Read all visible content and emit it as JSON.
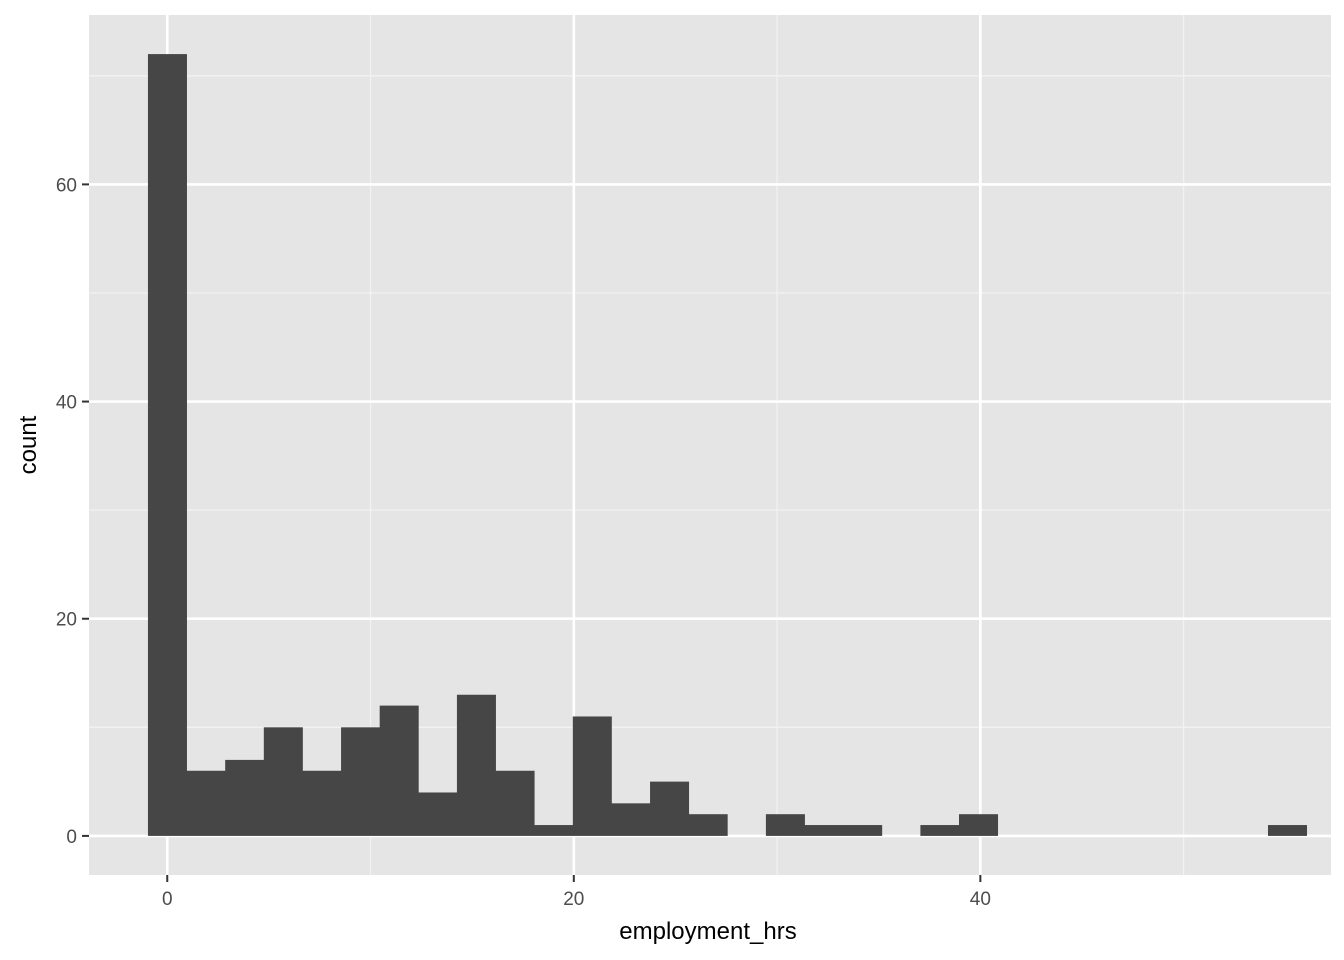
{
  "chart_data": {
    "type": "bar",
    "title": "",
    "xlabel": "employment_hrs",
    "ylabel": "count",
    "xlim": [
      -3.85,
      57.25
    ],
    "ylim": [
      -3.6,
      75.6
    ],
    "x_major_ticks": [
      0,
      20,
      40
    ],
    "x_minor_ticks": [
      10,
      30,
      50
    ],
    "y_major_ticks": [
      0,
      20,
      40,
      60
    ],
    "y_minor_ticks": [
      10,
      30,
      50,
      70
    ],
    "bin_width": 1.9,
    "bins": [
      {
        "x": 0.0,
        "count": 72
      },
      {
        "x": 1.9,
        "count": 6
      },
      {
        "x": 3.8,
        "count": 7
      },
      {
        "x": 5.7,
        "count": 10
      },
      {
        "x": 7.6,
        "count": 6
      },
      {
        "x": 9.5,
        "count": 10
      },
      {
        "x": 11.4,
        "count": 12
      },
      {
        "x": 13.3,
        "count": 4
      },
      {
        "x": 15.2,
        "count": 13
      },
      {
        "x": 17.1,
        "count": 6
      },
      {
        "x": 19.0,
        "count": 1
      },
      {
        "x": 20.9,
        "count": 11
      },
      {
        "x": 22.8,
        "count": 3
      },
      {
        "x": 24.7,
        "count": 5
      },
      {
        "x": 26.6,
        "count": 2
      },
      {
        "x": 28.5,
        "count": 0
      },
      {
        "x": 30.4,
        "count": 2
      },
      {
        "x": 32.3,
        "count": 1
      },
      {
        "x": 34.2,
        "count": 1
      },
      {
        "x": 36.1,
        "count": 0
      },
      {
        "x": 38.0,
        "count": 1
      },
      {
        "x": 39.9,
        "count": 2
      },
      {
        "x": 41.8,
        "count": 0
      },
      {
        "x": 43.7,
        "count": 0
      },
      {
        "x": 45.6,
        "count": 0
      },
      {
        "x": 47.5,
        "count": 0
      },
      {
        "x": 49.4,
        "count": 0
      },
      {
        "x": 51.3,
        "count": 0
      },
      {
        "x": 53.2,
        "count": 0
      },
      {
        "x": 55.1,
        "count": 1
      }
    ],
    "grid": true,
    "legend": "none",
    "colors": {
      "panel_background": "#e5e5e5",
      "grid_major": "#ffffff",
      "grid_minor": "#f2f2f2",
      "bar_fill": "#464646",
      "tick_mark": "#333333",
      "tick_text": "#4d4d4d",
      "axis_title": "#000000"
    }
  }
}
